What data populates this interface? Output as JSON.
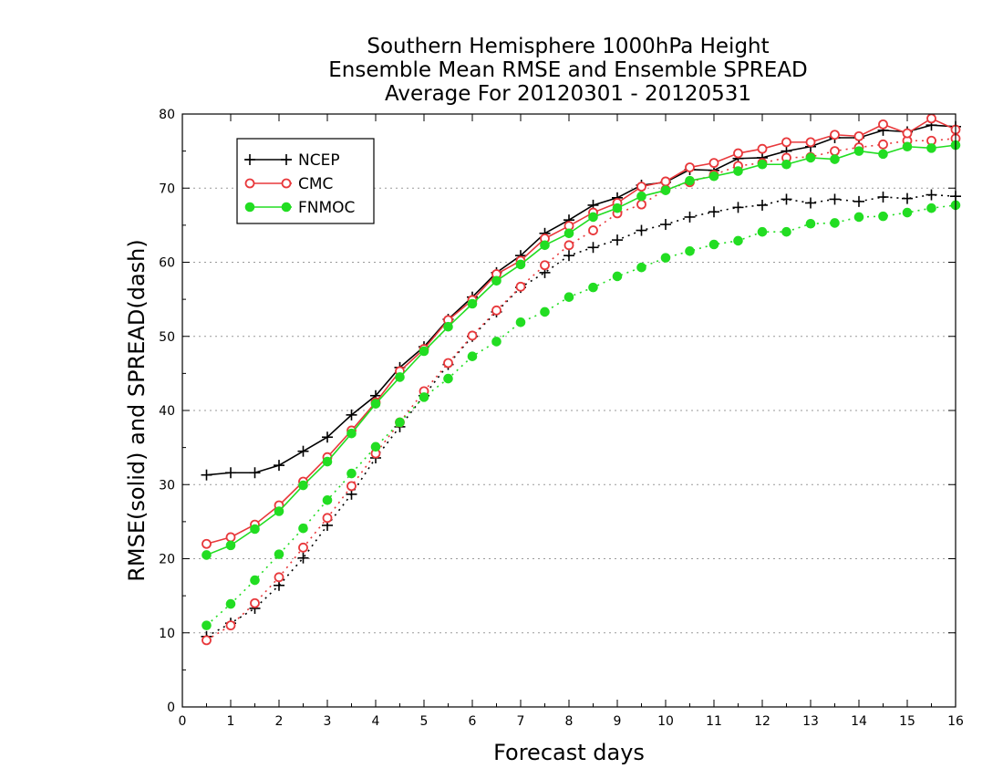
{
  "chart_data": {
    "type": "line",
    "title_lines": [
      "Southern Hemisphere 1000hPa Height",
      "Ensemble Mean RMSE and Ensemble SPREAD",
      "Average For 20120301 - 20120531"
    ],
    "xlabel": "Forecast days",
    "ylabel": "RMSE(solid) and SPREAD(dash)",
    "xlim": [
      0,
      16
    ],
    "ylim": [
      0,
      80
    ],
    "xticks": [
      0,
      1,
      2,
      3,
      4,
      5,
      6,
      7,
      8,
      9,
      10,
      11,
      12,
      13,
      14,
      15,
      16
    ],
    "yticks": [
      0,
      10,
      20,
      30,
      40,
      50,
      60,
      70,
      80
    ],
    "grid": true,
    "legend_position": "top-left",
    "x": [
      0.5,
      1,
      1.5,
      2,
      2.5,
      3,
      3.5,
      4,
      4.5,
      5,
      5.5,
      6,
      6.5,
      7,
      7.5,
      8,
      8.5,
      9,
      9.5,
      10,
      10.5,
      11,
      11.5,
      12,
      12.5,
      13,
      13.5,
      14,
      14.5,
      15,
      15.5,
      16
    ],
    "series": [
      {
        "name": "NCEP",
        "color": "#000000",
        "marker": "plus",
        "rmse": [
          31.3,
          31.6,
          31.6,
          32.6,
          34.5,
          36.4,
          39.4,
          42.0,
          45.8,
          48.6,
          52.3,
          55.3,
          58.6,
          60.9,
          63.9,
          65.7,
          67.7,
          68.7,
          70.4,
          70.8,
          72.5,
          72.4,
          74.0,
          74.1,
          75.0,
          75.6,
          76.8,
          76.8,
          77.8,
          77.6,
          78.5,
          78.3
        ],
        "spread": [
          9.5,
          11.3,
          13.3,
          16.4,
          20.1,
          24.5,
          28.7,
          33.6,
          37.8,
          42.0,
          46.2,
          50.0,
          53.3,
          56.6,
          58.6,
          60.9,
          62.0,
          63.0,
          64.3,
          65.1,
          66.1,
          66.8,
          67.4,
          67.7,
          68.5,
          68.0,
          68.5,
          68.2,
          68.8,
          68.6,
          69.1,
          68.9
        ]
      },
      {
        "name": "CMC",
        "color": "#e8383b",
        "marker": "circle",
        "rmse": [
          22.0,
          22.9,
          24.6,
          27.2,
          30.4,
          33.7,
          37.3,
          41.1,
          45.3,
          48.3,
          52.2,
          54.9,
          58.4,
          60.2,
          63.2,
          64.9,
          66.7,
          68.0,
          70.2,
          70.9,
          72.8,
          73.4,
          74.7,
          75.3,
          76.2,
          76.2,
          77.2,
          77.0,
          78.6,
          77.4,
          79.4,
          77.9
        ],
        "spread": [
          9.0,
          11.0,
          14.0,
          17.5,
          21.5,
          25.5,
          29.8,
          34.2,
          38.4,
          42.6,
          46.4,
          50.1,
          53.5,
          56.7,
          59.6,
          62.3,
          64.3,
          66.6,
          67.8,
          69.8,
          70.8,
          71.8,
          73.0,
          73.4,
          74.1,
          74.2,
          75.0,
          75.5,
          75.9,
          76.4,
          76.4,
          76.7
        ]
      },
      {
        "name": "FNMOC",
        "color": "#22dd22",
        "marker": "filled-circle",
        "rmse": [
          20.5,
          21.8,
          24.0,
          26.4,
          29.9,
          33.1,
          36.9,
          40.9,
          44.5,
          48.0,
          51.3,
          54.4,
          57.5,
          59.7,
          62.3,
          63.9,
          66.1,
          67.3,
          68.9,
          69.7,
          71.0,
          71.6,
          72.3,
          73.2,
          73.2,
          74.1,
          73.9,
          75.0,
          74.6,
          75.6,
          75.4,
          75.8
        ],
        "spread": [
          11.0,
          13.9,
          17.1,
          20.6,
          24.1,
          27.9,
          31.5,
          35.1,
          38.4,
          41.8,
          44.3,
          47.3,
          49.3,
          51.9,
          53.3,
          55.3,
          56.6,
          58.1,
          59.3,
          60.6,
          61.5,
          62.4,
          62.9,
          64.1,
          64.1,
          65.2,
          65.3,
          66.1,
          66.2,
          66.7,
          67.3,
          67.7
        ]
      }
    ]
  }
}
